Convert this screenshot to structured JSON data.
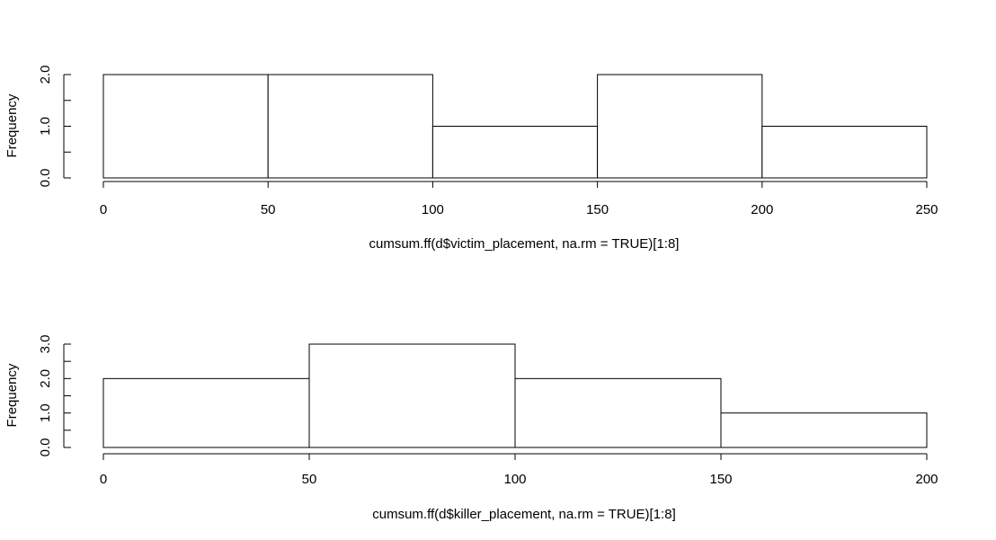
{
  "chart_data": [
    {
      "type": "bar",
      "title": "",
      "xlabel": "cumsum.ff(d$victim_placement, na.rm = TRUE)[1:8]",
      "ylabel": "Frequency",
      "bin_edges": [
        0,
        50,
        100,
        150,
        200,
        250
      ],
      "values": [
        2,
        2,
        1,
        2,
        1
      ],
      "xlim": [
        0,
        250
      ],
      "ylim": [
        0,
        2
      ],
      "xticks": [
        "0",
        "50",
        "100",
        "150",
        "200",
        "250"
      ],
      "yticks": [
        "0.0",
        "1.0",
        "2.0"
      ],
      "ytick_values": [
        0,
        1,
        2
      ],
      "y_minor_ticks": [
        0.5,
        1.5
      ],
      "grid": false
    },
    {
      "type": "bar",
      "title": "",
      "xlabel": "cumsum.ff(d$killer_placement, na.rm = TRUE)[1:8]",
      "ylabel": "Frequency",
      "bin_edges": [
        0,
        50,
        100,
        150,
        200
      ],
      "values": [
        2,
        3,
        2,
        1
      ],
      "xlim": [
        0,
        200
      ],
      "ylim": [
        0,
        3
      ],
      "xticks": [
        "0",
        "50",
        "100",
        "150",
        "200"
      ],
      "yticks": [
        "0.0",
        "1.0",
        "2.0",
        "3.0"
      ],
      "ytick_values": [
        0,
        1,
        2,
        3
      ],
      "y_minor_ticks": [
        0.5,
        1.5,
        2.5
      ],
      "grid": false
    }
  ]
}
